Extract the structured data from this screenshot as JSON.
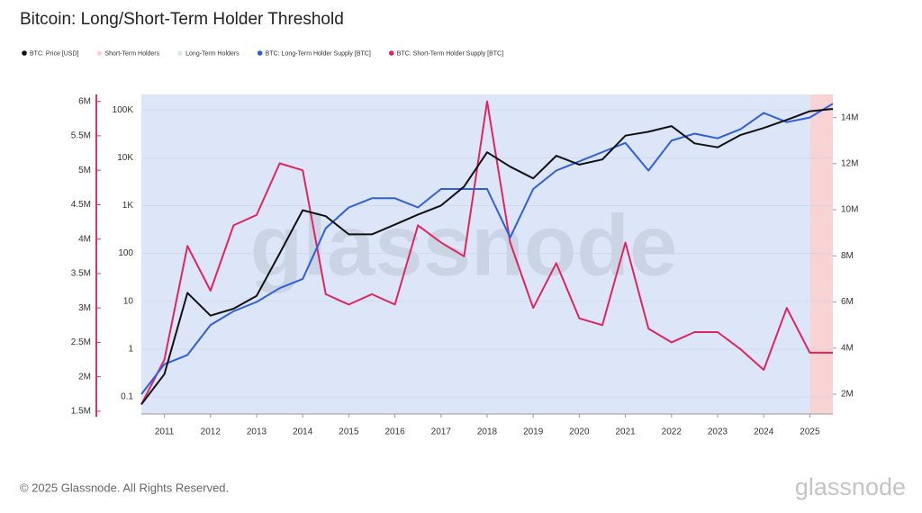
{
  "chart_data": {
    "type": "line",
    "title": "Bitcoin: Long/Short-Term Holder Threshold",
    "watermark": "glassnode",
    "footer": "© 2025 Glassnode. All Rights Reserved.",
    "logo": "glassnode",
    "x": [
      2010.5,
      2011.0,
      2011.5,
      2012.0,
      2012.5,
      2013.0,
      2013.5,
      2014.0,
      2014.5,
      2015.0,
      2015.5,
      2016.0,
      2016.5,
      2017.0,
      2017.5,
      2018.0,
      2018.5,
      2019.0,
      2019.5,
      2020.0,
      2020.5,
      2021.0,
      2021.5,
      2022.0,
      2022.5,
      2023.0,
      2023.5,
      2024.0,
      2024.5,
      2025.0,
      2025.5
    ],
    "xlim": [
      2010.5,
      2025.5
    ],
    "xticks": [
      2011,
      2012,
      2013,
      2014,
      2015,
      2016,
      2017,
      2018,
      2019,
      2020,
      2021,
      2022,
      2023,
      2024,
      2025
    ],
    "ylim": [
      0.044,
      210000
    ],
    "yscale": "log",
    "yticks": [
      0.1,
      1,
      10,
      100,
      {
        "value": 1000,
        "label": "1K"
      },
      {
        "value": 10000,
        "label": "10K"
      },
      {
        "value": 100000,
        "label": "100K"
      }
    ],
    "y2lim": [
      1140000,
      15000000
    ],
    "y2ticks": [
      {
        "value": 2000000,
        "label": "2M"
      },
      {
        "value": 4000000,
        "label": "4M"
      },
      {
        "value": 6000000,
        "label": "6M"
      },
      {
        "value": 8000000,
        "label": "8M"
      },
      {
        "value": 10000000,
        "label": "10M"
      },
      {
        "value": 12000000,
        "label": "12M"
      },
      {
        "value": 14000000,
        "label": "14M"
      }
    ],
    "y3lim": [
      1460000,
      6100000
    ],
    "y3ticks": [
      {
        "value": 1500000,
        "label": "1.5M"
      },
      {
        "value": 2000000,
        "label": "2M"
      },
      {
        "value": 2500000,
        "label": "2.5M"
      },
      {
        "value": 3000000,
        "label": "3M"
      },
      {
        "value": 3500000,
        "label": "3.5M"
      },
      {
        "value": 4000000,
        "label": "4M"
      },
      {
        "value": 4500000,
        "label": "4.5M"
      },
      {
        "value": 5000000,
        "label": "5M"
      },
      {
        "value": 5500000,
        "label": "5.5M"
      },
      {
        "value": 6000000,
        "label": "6M"
      }
    ],
    "y3color": "#d8336a",
    "grid": true,
    "regions": [
      {
        "name": "Short-Term Holders",
        "color": "#f8d3d3",
        "x": [
          2025.0,
          2025.5
        ]
      },
      {
        "name": "Long-Term Holders",
        "color": "#dce6f8",
        "x": [
          2010.5,
          2025.0
        ]
      }
    ],
    "series": [
      {
        "name": "BTC: Price [USD]",
        "color": "#111111",
        "axis": "y",
        "values": [
          0.07,
          0.3,
          15,
          5,
          7,
          13,
          100,
          800,
          600,
          250,
          250,
          400,
          650,
          1000,
          2500,
          13000,
          6500,
          3700,
          11000,
          7200,
          9200,
          29000,
          35000,
          46000,
          20000,
          16500,
          30000,
          42000,
          62000,
          94000,
          105000
        ]
      },
      {
        "name": "BTC: Long-Term Holder Supply [BTC]",
        "color": "#2f5fd9",
        "axis": "y2",
        "values": [
          2000000,
          3300000,
          3700000,
          5000000,
          5600000,
          6000000,
          6600000,
          7000000,
          9200000,
          10100000,
          10500000,
          10500000,
          10100000,
          10900000,
          10900000,
          10900000,
          8800000,
          10900000,
          11700000,
          12100000,
          12500000,
          12900000,
          11700000,
          13000000,
          13300000,
          13100000,
          13500000,
          14200000,
          13800000,
          14000000,
          14600000
        ]
      },
      {
        "name": "BTC: Short-Term Holder Supply [BTC]",
        "color": "#e0245e",
        "axis": "y3",
        "values": [
          1600000,
          2250000,
          3900000,
          3250000,
          4200000,
          4350000,
          5100000,
          5000000,
          3200000,
          3050000,
          3200000,
          3050000,
          4200000,
          3950000,
          3750000,
          6000000,
          3950000,
          3000000,
          3650000,
          2850000,
          2750000,
          3950000,
          2700000,
          2500000,
          2650000,
          2650000,
          2400000,
          2100000,
          3000000,
          2350000,
          2350000
        ]
      }
    ]
  }
}
